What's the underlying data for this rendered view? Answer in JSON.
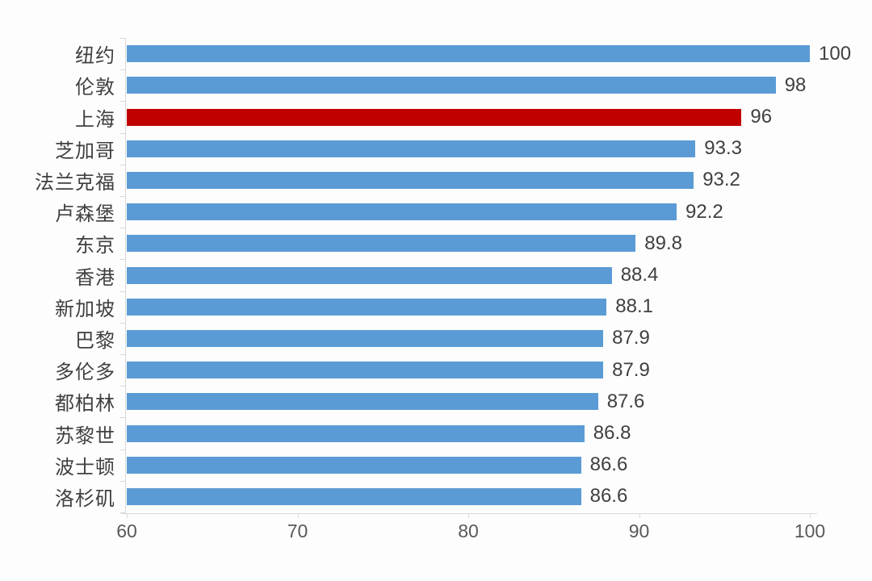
{
  "chart_data": {
    "type": "bar",
    "orientation": "horizontal",
    "title": "",
    "categories": [
      "纽约",
      "伦敦",
      "上海",
      "芝加哥",
      "法兰克福",
      "卢森堡",
      "东京",
      "香港",
      "新加坡",
      "巴黎",
      "多伦多",
      "都柏林",
      "苏黎世",
      "波士顿",
      "洛杉矶"
    ],
    "values": [
      100,
      98,
      96,
      93.3,
      93.2,
      92.2,
      89.8,
      88.4,
      88.1,
      87.9,
      87.9,
      87.6,
      86.8,
      86.6,
      86.6
    ],
    "value_labels": [
      "100",
      "98",
      "96",
      "93.3",
      "93.2",
      "92.2",
      "89.8",
      "88.4",
      "88.1",
      "87.9",
      "87.9",
      "87.6",
      "86.8",
      "86.6",
      "86.6"
    ],
    "highlight_index": 2,
    "xlim": [
      60,
      100
    ],
    "x_ticks": [
      "60",
      "70",
      "80",
      "90",
      "100"
    ],
    "grid": false,
    "legend": "none",
    "colors": {
      "bar": "#5B9BD5",
      "highlight": "#C00000",
      "label_text": "#404040",
      "axis_text": "#595959",
      "axis_line": "#D9D9D9"
    }
  }
}
